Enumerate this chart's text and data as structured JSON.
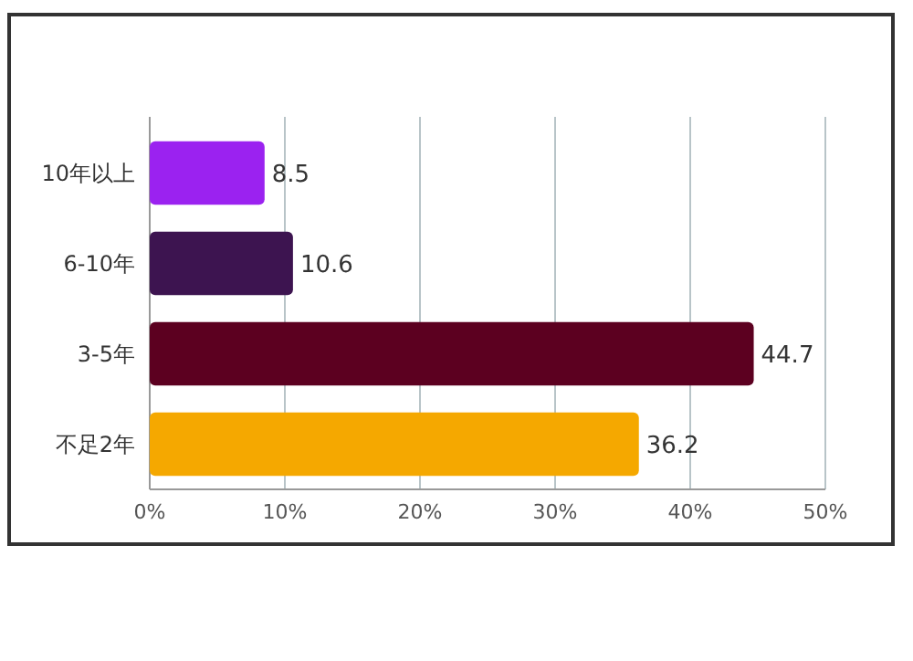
{
  "chart_data": {
    "type": "bar",
    "orientation": "horizontal",
    "categories": [
      "10年以上",
      "6-10年",
      "3-5年",
      "不足2年"
    ],
    "values": [
      8.5,
      10.6,
      44.7,
      36.2
    ],
    "colors": [
      "#9b22f0",
      "#3d1450",
      "#5c0020",
      "#f5a800"
    ],
    "xlim": [
      0,
      50
    ],
    "xticks": [
      {
        "value": 0,
        "label": "0%"
      },
      {
        "value": 10,
        "label": "10%"
      },
      {
        "value": 20,
        "label": "20%"
      },
      {
        "value": 30,
        "label": "30%"
      },
      {
        "value": 40,
        "label": "40%"
      },
      {
        "value": 50,
        "label": "50%"
      }
    ],
    "grid": "x",
    "data_labels": true
  }
}
